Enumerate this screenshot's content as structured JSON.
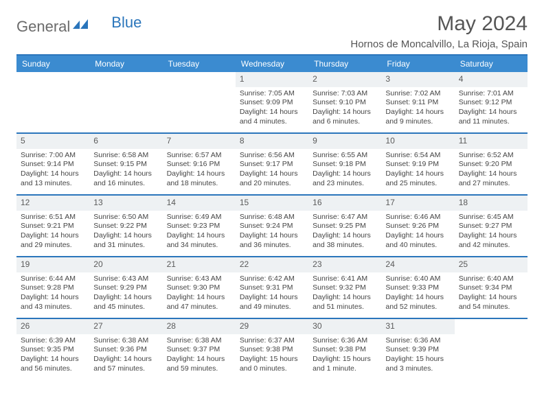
{
  "logo": {
    "part1": "General",
    "part2": "Blue"
  },
  "title": "May 2024",
  "location": "Hornos de Moncalvillo, La Rioja, Spain",
  "colors": {
    "header_bg": "#3b8bd0",
    "header_border": "#2a75bb",
    "daynum_bg": "#eef1f3",
    "text": "#444444",
    "logo_gray": "#6b6b6b",
    "logo_blue": "#2a75bb"
  },
  "weekdays": [
    "Sunday",
    "Monday",
    "Tuesday",
    "Wednesday",
    "Thursday",
    "Friday",
    "Saturday"
  ],
  "weeks": [
    [
      {
        "empty": true
      },
      {
        "empty": true
      },
      {
        "empty": true
      },
      {
        "day": "1",
        "sunrise": "Sunrise: 7:05 AM",
        "sunset": "Sunset: 9:09 PM",
        "daylight1": "Daylight: 14 hours",
        "daylight2": "and 4 minutes."
      },
      {
        "day": "2",
        "sunrise": "Sunrise: 7:03 AM",
        "sunset": "Sunset: 9:10 PM",
        "daylight1": "Daylight: 14 hours",
        "daylight2": "and 6 minutes."
      },
      {
        "day": "3",
        "sunrise": "Sunrise: 7:02 AM",
        "sunset": "Sunset: 9:11 PM",
        "daylight1": "Daylight: 14 hours",
        "daylight2": "and 9 minutes."
      },
      {
        "day": "4",
        "sunrise": "Sunrise: 7:01 AM",
        "sunset": "Sunset: 9:12 PM",
        "daylight1": "Daylight: 14 hours",
        "daylight2": "and 11 minutes."
      }
    ],
    [
      {
        "day": "5",
        "sunrise": "Sunrise: 7:00 AM",
        "sunset": "Sunset: 9:14 PM",
        "daylight1": "Daylight: 14 hours",
        "daylight2": "and 13 minutes."
      },
      {
        "day": "6",
        "sunrise": "Sunrise: 6:58 AM",
        "sunset": "Sunset: 9:15 PM",
        "daylight1": "Daylight: 14 hours",
        "daylight2": "and 16 minutes."
      },
      {
        "day": "7",
        "sunrise": "Sunrise: 6:57 AM",
        "sunset": "Sunset: 9:16 PM",
        "daylight1": "Daylight: 14 hours",
        "daylight2": "and 18 minutes."
      },
      {
        "day": "8",
        "sunrise": "Sunrise: 6:56 AM",
        "sunset": "Sunset: 9:17 PM",
        "daylight1": "Daylight: 14 hours",
        "daylight2": "and 20 minutes."
      },
      {
        "day": "9",
        "sunrise": "Sunrise: 6:55 AM",
        "sunset": "Sunset: 9:18 PM",
        "daylight1": "Daylight: 14 hours",
        "daylight2": "and 23 minutes."
      },
      {
        "day": "10",
        "sunrise": "Sunrise: 6:54 AM",
        "sunset": "Sunset: 9:19 PM",
        "daylight1": "Daylight: 14 hours",
        "daylight2": "and 25 minutes."
      },
      {
        "day": "11",
        "sunrise": "Sunrise: 6:52 AM",
        "sunset": "Sunset: 9:20 PM",
        "daylight1": "Daylight: 14 hours",
        "daylight2": "and 27 minutes."
      }
    ],
    [
      {
        "day": "12",
        "sunrise": "Sunrise: 6:51 AM",
        "sunset": "Sunset: 9:21 PM",
        "daylight1": "Daylight: 14 hours",
        "daylight2": "and 29 minutes."
      },
      {
        "day": "13",
        "sunrise": "Sunrise: 6:50 AM",
        "sunset": "Sunset: 9:22 PM",
        "daylight1": "Daylight: 14 hours",
        "daylight2": "and 31 minutes."
      },
      {
        "day": "14",
        "sunrise": "Sunrise: 6:49 AM",
        "sunset": "Sunset: 9:23 PM",
        "daylight1": "Daylight: 14 hours",
        "daylight2": "and 34 minutes."
      },
      {
        "day": "15",
        "sunrise": "Sunrise: 6:48 AM",
        "sunset": "Sunset: 9:24 PM",
        "daylight1": "Daylight: 14 hours",
        "daylight2": "and 36 minutes."
      },
      {
        "day": "16",
        "sunrise": "Sunrise: 6:47 AM",
        "sunset": "Sunset: 9:25 PM",
        "daylight1": "Daylight: 14 hours",
        "daylight2": "and 38 minutes."
      },
      {
        "day": "17",
        "sunrise": "Sunrise: 6:46 AM",
        "sunset": "Sunset: 9:26 PM",
        "daylight1": "Daylight: 14 hours",
        "daylight2": "and 40 minutes."
      },
      {
        "day": "18",
        "sunrise": "Sunrise: 6:45 AM",
        "sunset": "Sunset: 9:27 PM",
        "daylight1": "Daylight: 14 hours",
        "daylight2": "and 42 minutes."
      }
    ],
    [
      {
        "day": "19",
        "sunrise": "Sunrise: 6:44 AM",
        "sunset": "Sunset: 9:28 PM",
        "daylight1": "Daylight: 14 hours",
        "daylight2": "and 43 minutes."
      },
      {
        "day": "20",
        "sunrise": "Sunrise: 6:43 AM",
        "sunset": "Sunset: 9:29 PM",
        "daylight1": "Daylight: 14 hours",
        "daylight2": "and 45 minutes."
      },
      {
        "day": "21",
        "sunrise": "Sunrise: 6:43 AM",
        "sunset": "Sunset: 9:30 PM",
        "daylight1": "Daylight: 14 hours",
        "daylight2": "and 47 minutes."
      },
      {
        "day": "22",
        "sunrise": "Sunrise: 6:42 AM",
        "sunset": "Sunset: 9:31 PM",
        "daylight1": "Daylight: 14 hours",
        "daylight2": "and 49 minutes."
      },
      {
        "day": "23",
        "sunrise": "Sunrise: 6:41 AM",
        "sunset": "Sunset: 9:32 PM",
        "daylight1": "Daylight: 14 hours",
        "daylight2": "and 51 minutes."
      },
      {
        "day": "24",
        "sunrise": "Sunrise: 6:40 AM",
        "sunset": "Sunset: 9:33 PM",
        "daylight1": "Daylight: 14 hours",
        "daylight2": "and 52 minutes."
      },
      {
        "day": "25",
        "sunrise": "Sunrise: 6:40 AM",
        "sunset": "Sunset: 9:34 PM",
        "daylight1": "Daylight: 14 hours",
        "daylight2": "and 54 minutes."
      }
    ],
    [
      {
        "day": "26",
        "sunrise": "Sunrise: 6:39 AM",
        "sunset": "Sunset: 9:35 PM",
        "daylight1": "Daylight: 14 hours",
        "daylight2": "and 56 minutes."
      },
      {
        "day": "27",
        "sunrise": "Sunrise: 6:38 AM",
        "sunset": "Sunset: 9:36 PM",
        "daylight1": "Daylight: 14 hours",
        "daylight2": "and 57 minutes."
      },
      {
        "day": "28",
        "sunrise": "Sunrise: 6:38 AM",
        "sunset": "Sunset: 9:37 PM",
        "daylight1": "Daylight: 14 hours",
        "daylight2": "and 59 minutes."
      },
      {
        "day": "29",
        "sunrise": "Sunrise: 6:37 AM",
        "sunset": "Sunset: 9:38 PM",
        "daylight1": "Daylight: 15 hours",
        "daylight2": "and 0 minutes."
      },
      {
        "day": "30",
        "sunrise": "Sunrise: 6:36 AM",
        "sunset": "Sunset: 9:38 PM",
        "daylight1": "Daylight: 15 hours",
        "daylight2": "and 1 minute."
      },
      {
        "day": "31",
        "sunrise": "Sunrise: 6:36 AM",
        "sunset": "Sunset: 9:39 PM",
        "daylight1": "Daylight: 15 hours",
        "daylight2": "and 3 minutes."
      },
      {
        "empty": true
      }
    ]
  ]
}
